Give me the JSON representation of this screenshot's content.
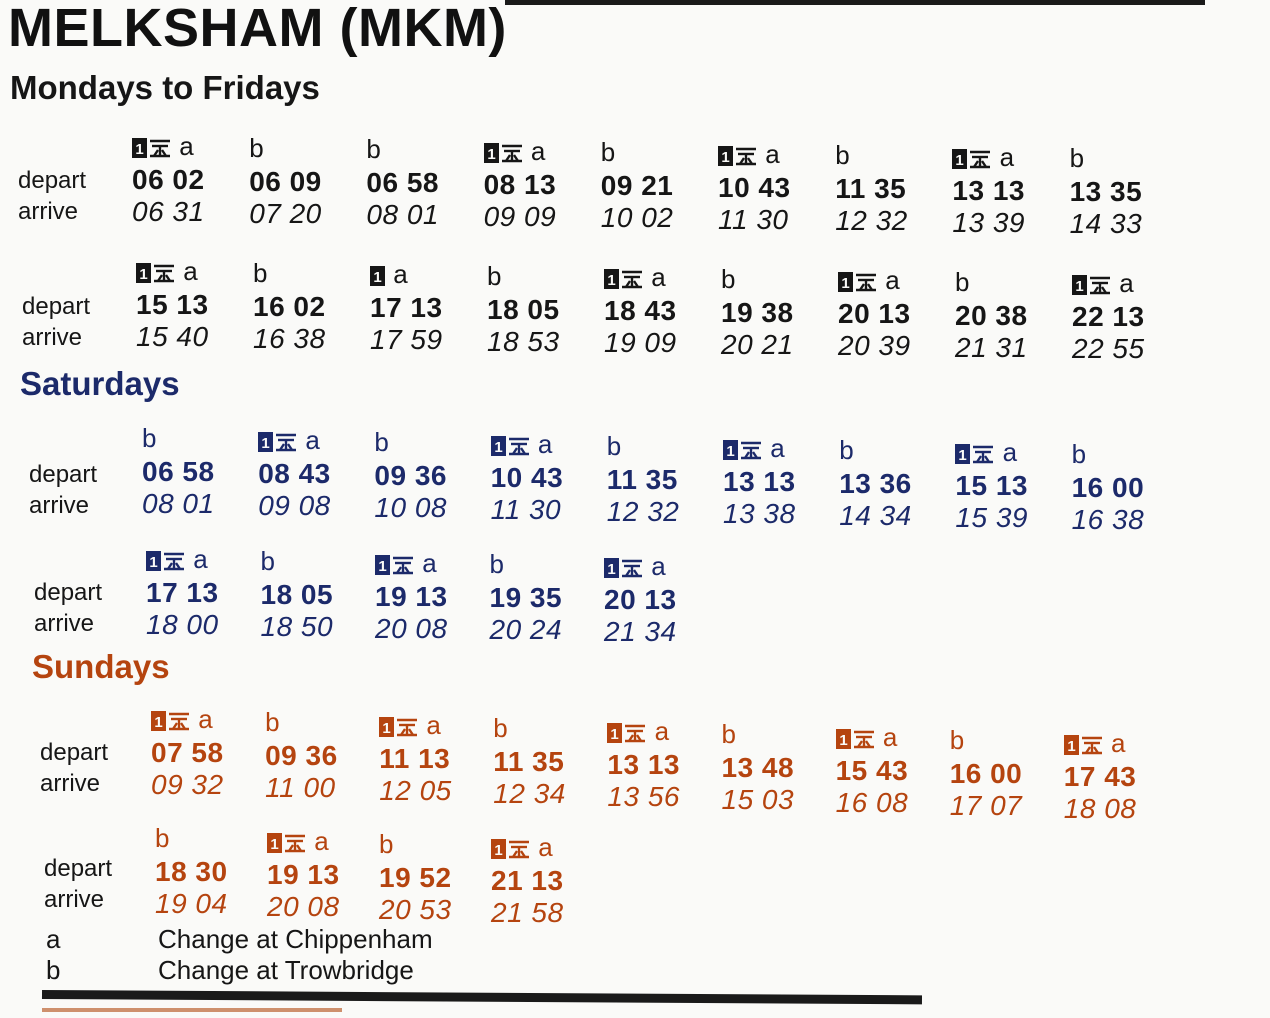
{
  "station_title": "MELKSHAM (MKM)",
  "colors": {
    "weekday": "#161616",
    "saturday": "#1c2a6a",
    "sunday": "#b5440f"
  },
  "sections": [
    {
      "heading": "Mondays to Fridays",
      "rows": [
        {
          "depart_label": "depart",
          "arrive_label": "arrive",
          "trains": [
            {
              "note": "a",
              "first_class": true,
              "catering": true,
              "depart": "06 02",
              "arrive": "06 31"
            },
            {
              "note": "b",
              "first_class": false,
              "catering": false,
              "depart": "06 09",
              "arrive": "07 20"
            },
            {
              "note": "b",
              "first_class": false,
              "catering": false,
              "depart": "06 58",
              "arrive": "08 01"
            },
            {
              "note": "a",
              "first_class": true,
              "catering": true,
              "depart": "08 13",
              "arrive": "09 09"
            },
            {
              "note": "b",
              "first_class": false,
              "catering": false,
              "depart": "09 21",
              "arrive": "10 02"
            },
            {
              "note": "a",
              "first_class": true,
              "catering": true,
              "depart": "10 43",
              "arrive": "11 30"
            },
            {
              "note": "b",
              "first_class": false,
              "catering": false,
              "depart": "11 35",
              "arrive": "12 32"
            },
            {
              "note": "a",
              "first_class": true,
              "catering": true,
              "depart": "13 13",
              "arrive": "13 39"
            },
            {
              "note": "b",
              "first_class": false,
              "catering": false,
              "depart": "13 35",
              "arrive": "14 33"
            }
          ]
        },
        {
          "depart_label": "depart",
          "arrive_label": "arrive",
          "trains": [
            {
              "note": "a",
              "first_class": true,
              "catering": true,
              "depart": "15 13",
              "arrive": "15 40"
            },
            {
              "note": "b",
              "first_class": false,
              "catering": false,
              "depart": "16 02",
              "arrive": "16 38"
            },
            {
              "note": "a",
              "first_class": true,
              "catering": false,
              "depart": "17 13",
              "arrive": "17 59"
            },
            {
              "note": "b",
              "first_class": false,
              "catering": false,
              "depart": "18 05",
              "arrive": "18 53"
            },
            {
              "note": "a",
              "first_class": true,
              "catering": true,
              "depart": "18 43",
              "arrive": "19 09"
            },
            {
              "note": "b",
              "first_class": false,
              "catering": false,
              "depart": "19 38",
              "arrive": "20 21"
            },
            {
              "note": "a",
              "first_class": true,
              "catering": true,
              "depart": "20 13",
              "arrive": "20 39"
            },
            {
              "note": "b",
              "first_class": false,
              "catering": false,
              "depart": "20 38",
              "arrive": "21 31"
            },
            {
              "note": "a",
              "first_class": true,
              "catering": true,
              "depart": "22 13",
              "arrive": "22 55"
            }
          ]
        }
      ]
    },
    {
      "heading": "Saturdays",
      "rows": [
        {
          "depart_label": "depart",
          "arrive_label": "arrive",
          "trains": [
            {
              "note": "b",
              "first_class": false,
              "catering": false,
              "depart": "06 58",
              "arrive": "08 01"
            },
            {
              "note": "a",
              "first_class": true,
              "catering": true,
              "depart": "08 43",
              "arrive": "09 08"
            },
            {
              "note": "b",
              "first_class": false,
              "catering": false,
              "depart": "09 36",
              "arrive": "10 08"
            },
            {
              "note": "a",
              "first_class": true,
              "catering": true,
              "depart": "10 43",
              "arrive": "11 30"
            },
            {
              "note": "b",
              "first_class": false,
              "catering": false,
              "depart": "11 35",
              "arrive": "12 32"
            },
            {
              "note": "a",
              "first_class": true,
              "catering": true,
              "depart": "13 13",
              "arrive": "13 38"
            },
            {
              "note": "b",
              "first_class": false,
              "catering": false,
              "depart": "13 36",
              "arrive": "14 34"
            },
            {
              "note": "a",
              "first_class": true,
              "catering": true,
              "depart": "15 13",
              "arrive": "15 39"
            },
            {
              "note": "b",
              "first_class": false,
              "catering": false,
              "depart": "16 00",
              "arrive": "16 38"
            }
          ]
        },
        {
          "depart_label": "depart",
          "arrive_label": "arrive",
          "trains": [
            {
              "note": "a",
              "first_class": true,
              "catering": true,
              "depart": "17 13",
              "arrive": "18 00"
            },
            {
              "note": "b",
              "first_class": false,
              "catering": false,
              "depart": "18 05",
              "arrive": "18 50"
            },
            {
              "note": "a",
              "first_class": true,
              "catering": true,
              "depart": "19 13",
              "arrive": "20 08"
            },
            {
              "note": "b",
              "first_class": false,
              "catering": false,
              "depart": "19 35",
              "arrive": "20 24"
            },
            {
              "note": "a",
              "first_class": true,
              "catering": true,
              "depart": "20 13",
              "arrive": "21 34"
            }
          ]
        }
      ]
    },
    {
      "heading": "Sundays",
      "rows": [
        {
          "depart_label": "depart",
          "arrive_label": "arrive",
          "trains": [
            {
              "note": "a",
              "first_class": true,
              "catering": true,
              "depart": "07 58",
              "arrive": "09 32"
            },
            {
              "note": "b",
              "first_class": false,
              "catering": false,
              "depart": "09 36",
              "arrive": "11 00"
            },
            {
              "note": "a",
              "first_class": true,
              "catering": true,
              "depart": "11 13",
              "arrive": "12 05"
            },
            {
              "note": "b",
              "first_class": false,
              "catering": false,
              "depart": "11 35",
              "arrive": "12 34"
            },
            {
              "note": "a",
              "first_class": true,
              "catering": true,
              "depart": "13 13",
              "arrive": "13 56"
            },
            {
              "note": "b",
              "first_class": false,
              "catering": false,
              "depart": "13 48",
              "arrive": "15 03"
            },
            {
              "note": "a",
              "first_class": true,
              "catering": true,
              "depart": "15 43",
              "arrive": "16 08"
            },
            {
              "note": "b",
              "first_class": false,
              "catering": false,
              "depart": "16 00",
              "arrive": "17 07"
            },
            {
              "note": "a",
              "first_class": true,
              "catering": true,
              "depart": "17 43",
              "arrive": "18 08"
            }
          ]
        },
        {
          "depart_label": "depart",
          "arrive_label": "arrive",
          "trains": [
            {
              "note": "b",
              "first_class": false,
              "catering": false,
              "depart": "18 30",
              "arrive": "19 04"
            },
            {
              "note": "a",
              "first_class": true,
              "catering": true,
              "depart": "19 13",
              "arrive": "20 08"
            },
            {
              "note": "b",
              "first_class": false,
              "catering": false,
              "depart": "19 52",
              "arrive": "20 53"
            },
            {
              "note": "a",
              "first_class": true,
              "catering": true,
              "depart": "21 13",
              "arrive": "21 58"
            }
          ]
        }
      ]
    }
  ],
  "legend": [
    {
      "key": "a",
      "text": "Change at Chippenham"
    },
    {
      "key": "b",
      "text": "Change at Trowbridge"
    }
  ]
}
